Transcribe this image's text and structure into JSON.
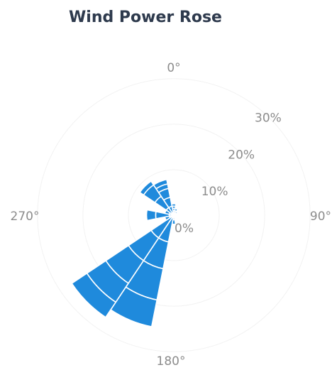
{
  "chart_data": {
    "type": "wind-rose",
    "title": "Wind Power Rose",
    "direction_labels": [
      "0°",
      "90°",
      "180°",
      "270°"
    ],
    "radial_ticks": [
      0,
      10,
      20,
      30
    ],
    "radial_tick_labels": [
      "0%",
      "10%",
      "20%",
      "30%"
    ],
    "radial_max": 32,
    "sector_width_deg": 22.5,
    "color": "#1f8adc",
    "sectors": [
      {
        "direction": 0,
        "bands": [
          0.5,
          0.5,
          0.5,
          0.5,
          0.5
        ]
      },
      {
        "direction": 22.5,
        "bands": [
          0.5,
          0.5,
          0.5
        ]
      },
      {
        "direction": 45,
        "bands": [
          0.5,
          0.5
        ]
      },
      {
        "direction": 67.5,
        "bands": [
          0.5
        ]
      },
      {
        "direction": 90,
        "bands": [
          0.5
        ]
      },
      {
        "direction": 112.5,
        "bands": [
          0.5
        ]
      },
      {
        "direction": 135,
        "bands": [
          0.5
        ]
      },
      {
        "direction": 157.5,
        "bands": [
          0.5
        ]
      },
      {
        "direction": 180,
        "bands": [
          1,
          1
        ]
      },
      {
        "direction": 202.5,
        "bands": [
          6,
          6,
          7,
          6
        ]
      },
      {
        "direction": 225,
        "bands": [
          6,
          6,
          6,
          5,
          4
        ]
      },
      {
        "direction": 247.5,
        "bands": [
          1,
          1
        ]
      },
      {
        "direction": 270,
        "bands": [
          1,
          3,
          2
        ]
      },
      {
        "direction": 292.5,
        "bands": [
          1,
          1
        ]
      },
      {
        "direction": 315,
        "bands": [
          2,
          3,
          3,
          1
        ]
      },
      {
        "direction": 337.5,
        "bands": [
          2,
          2,
          2,
          1,
          1
        ]
      }
    ]
  }
}
